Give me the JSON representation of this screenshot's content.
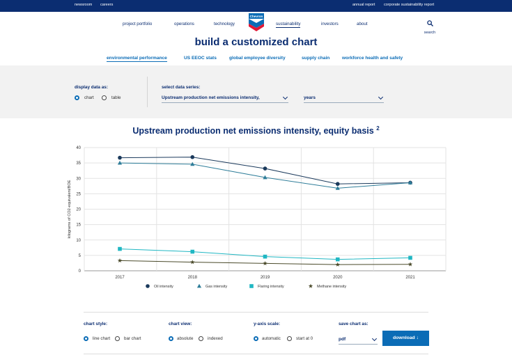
{
  "topbar": {
    "left_links": [
      "newsroom",
      "careers"
    ],
    "right_links": [
      "annual report",
      "corporate sustainability report"
    ]
  },
  "nav": {
    "items": [
      "project portfolio",
      "operations",
      "technology",
      "sustainability",
      "investors",
      "about"
    ],
    "active": "sustainability",
    "logo_text": "Chevron",
    "search_label": "search"
  },
  "page_title": "build a customized chart",
  "subnav": {
    "items": [
      "environmental performance",
      "US EEOC stats",
      "global employee diversity",
      "supply chain",
      "workforce health and safety"
    ],
    "active": "environmental performance"
  },
  "controls": {
    "display_label": "display data as:",
    "display_options": [
      "chart",
      "table"
    ],
    "display_selected": "chart",
    "series_label": "select data series:",
    "series_value": "Upstream production net emissions intensity,",
    "years_value": "years"
  },
  "chart_title": "Upstream production net emissions intensity, equity basis",
  "chart_title_sup": "2",
  "chart_data": {
    "type": "line",
    "title": "Upstream production net emissions intensity, equity basis",
    "x": [
      "2017",
      "2018",
      "2019",
      "2020",
      "2021"
    ],
    "ylabel": "kilograms of CO2-equivalent/BOE",
    "xlabel": "",
    "ylim": [
      0,
      40
    ],
    "yticks": [
      0,
      5,
      10,
      15,
      20,
      25,
      30,
      35,
      40
    ],
    "grid": true,
    "legend_position": "bottom",
    "series": [
      {
        "name": "Oil intensity",
        "marker": "circle",
        "color": "#1b3a5c",
        "values": [
          36.7,
          36.9,
          33.2,
          28.2,
          28.6
        ]
      },
      {
        "name": "Gas intensity",
        "marker": "triangle",
        "color": "#2e7d99",
        "values": [
          35.0,
          34.6,
          30.3,
          26.8,
          28.6
        ]
      },
      {
        "name": "Flaring intensity",
        "marker": "square",
        "color": "#20b7c3",
        "values": [
          7.1,
          6.2,
          4.6,
          3.7,
          4.2
        ]
      },
      {
        "name": "Methane intensity",
        "marker": "star",
        "color": "#4a4a2a",
        "values": [
          3.3,
          2.8,
          2.4,
          2.0,
          2.1
        ]
      }
    ]
  },
  "bottom": {
    "style_label": "chart style:",
    "style_options": [
      "line chart",
      "bar chart"
    ],
    "view_label": "chart view:",
    "view_options": [
      "absolute",
      "indexed"
    ],
    "yscale_label": "y-axis scale:",
    "yscale_options": [
      "automatic",
      "start at 0"
    ],
    "save_label": "save chart as:",
    "save_value": "pdf",
    "download_label": "download"
  }
}
